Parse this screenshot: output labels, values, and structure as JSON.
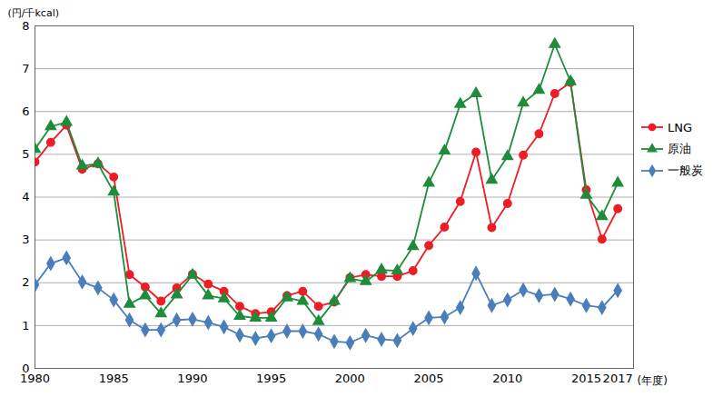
{
  "chart_data": {
    "type": "line",
    "x_label": "(年度)",
    "y_label": "(円/千kcal)",
    "x": [
      1980,
      1981,
      1982,
      1983,
      1984,
      1985,
      1986,
      1987,
      1988,
      1989,
      1990,
      1991,
      1992,
      1993,
      1994,
      1995,
      1996,
      1997,
      1998,
      1999,
      2000,
      2001,
      2002,
      2003,
      2004,
      2005,
      2006,
      2007,
      2008,
      2009,
      2010,
      2011,
      2012,
      2013,
      2014,
      2015,
      2016,
      2017
    ],
    "series": [
      {
        "name": "LNG",
        "color": "#ee1c25",
        "marker": "circle",
        "values": [
          4.82,
          5.28,
          5.68,
          4.65,
          4.78,
          4.47,
          2.19,
          1.9,
          1.57,
          1.88,
          2.2,
          1.97,
          1.8,
          1.45,
          1.28,
          1.32,
          1.7,
          1.8,
          1.45,
          1.55,
          2.12,
          2.19,
          2.15,
          2.15,
          2.28,
          2.87,
          3.3,
          3.9,
          5.05,
          3.29,
          3.85,
          4.98,
          5.48,
          6.42,
          6.68,
          4.17,
          3.02,
          3.73
        ]
      },
      {
        "name": "原油",
        "color": "#1e8c3a",
        "marker": "triangle",
        "values": [
          5.12,
          5.65,
          5.75,
          4.73,
          4.78,
          4.12,
          1.5,
          1.7,
          1.28,
          1.72,
          2.18,
          1.7,
          1.63,
          1.22,
          1.18,
          1.18,
          1.65,
          1.57,
          1.1,
          1.57,
          2.1,
          2.03,
          2.3,
          2.28,
          2.85,
          4.33,
          5.08,
          6.17,
          6.42,
          4.4,
          4.95,
          6.2,
          6.5,
          7.57,
          6.7,
          4.05,
          3.55,
          4.33
        ]
      },
      {
        "name": "一般炭",
        "color": "#4a7ebb",
        "marker": "diamond",
        "values": [
          1.95,
          2.45,
          2.58,
          2.02,
          1.88,
          1.6,
          1.13,
          0.9,
          0.9,
          1.13,
          1.15,
          1.07,
          0.97,
          0.78,
          0.7,
          0.76,
          0.87,
          0.87,
          0.8,
          0.63,
          0.6,
          0.77,
          0.68,
          0.65,
          0.93,
          1.18,
          1.2,
          1.42,
          2.22,
          1.47,
          1.6,
          1.83,
          1.7,
          1.73,
          1.62,
          1.47,
          1.42,
          1.82
        ]
      }
    ],
    "xlim": [
      1980,
      2018
    ],
    "xticks": [
      1980,
      1985,
      1990,
      1995,
      2000,
      2005,
      2010,
      2015,
      2017
    ],
    "ylim": [
      0,
      8
    ],
    "yticks": [
      0,
      1,
      2,
      3,
      4,
      5,
      6,
      7,
      8
    ],
    "grid": true,
    "legend": "right"
  }
}
